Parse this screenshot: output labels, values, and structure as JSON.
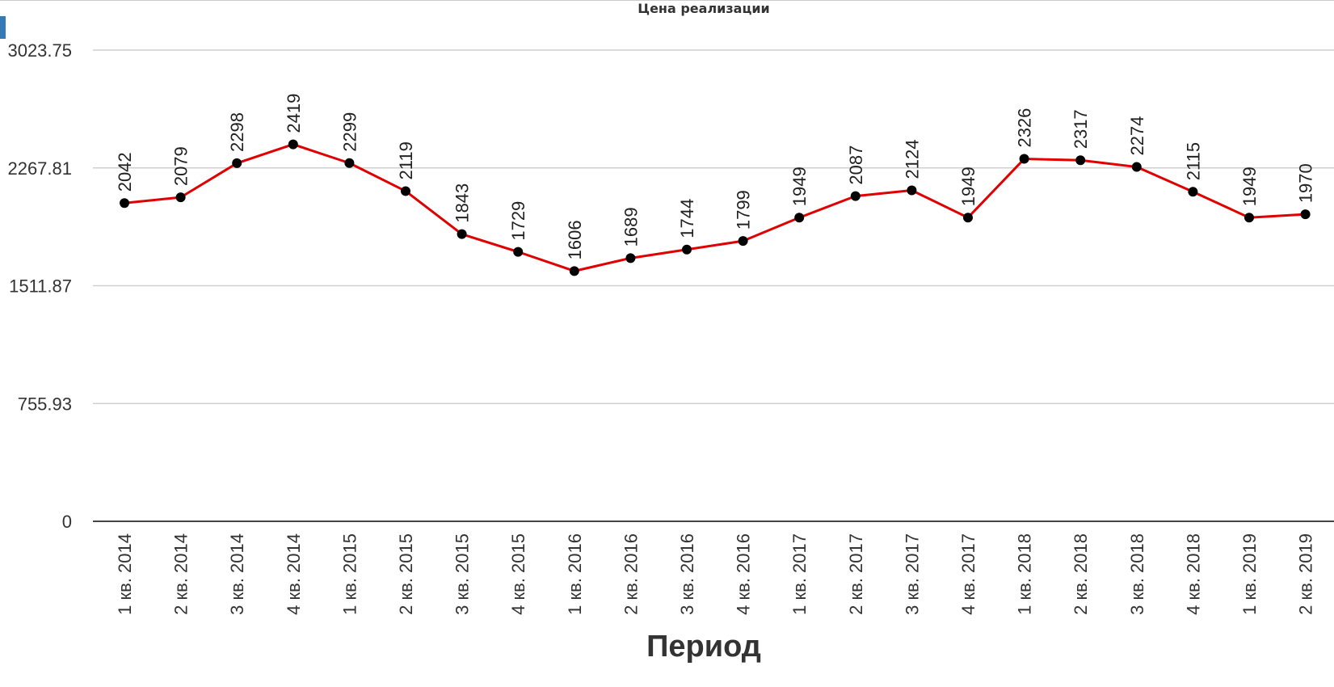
{
  "chart_data": {
    "type": "line",
    "title": "Цена реализации",
    "xlabel": "Период",
    "ylabel": "",
    "categories": [
      "1 кв. 2014",
      "2 кв. 2014",
      "3 кв. 2014",
      "4 кв. 2014",
      "1 кв. 2015",
      "2 кв. 2015",
      "3 кв. 2015",
      "4 кв. 2015",
      "1 кв. 2016",
      "2 кв. 2016",
      "3 кв. 2016",
      "4 кв. 2016",
      "1 кв. 2017",
      "2 кв. 2017",
      "3 кв. 2017",
      "4 кв. 2017",
      "1 кв. 2018",
      "2 кв. 2018",
      "3 кв. 2018",
      "4 кв. 2018",
      "1 кв. 2019",
      "2 кв. 2019"
    ],
    "series": [
      {
        "values": [
          2042,
          2079,
          2298,
          2419,
          2299,
          2119,
          1843,
          1729,
          1606,
          1689,
          1744,
          1799,
          1949,
          2087,
          2124,
          1949,
          2326,
          2317,
          2274,
          2115,
          1949,
          1970
        ]
      }
    ],
    "yticks": [
      "0",
      "755.93",
      "1511.87",
      "2267.81",
      "3023.75"
    ],
    "ylim": [
      0,
      3023.75
    ],
    "grid": true,
    "legend": "none",
    "line_color": "#e00000",
    "marker_color": "#000000",
    "legend_marker_color": "#337ab7"
  }
}
